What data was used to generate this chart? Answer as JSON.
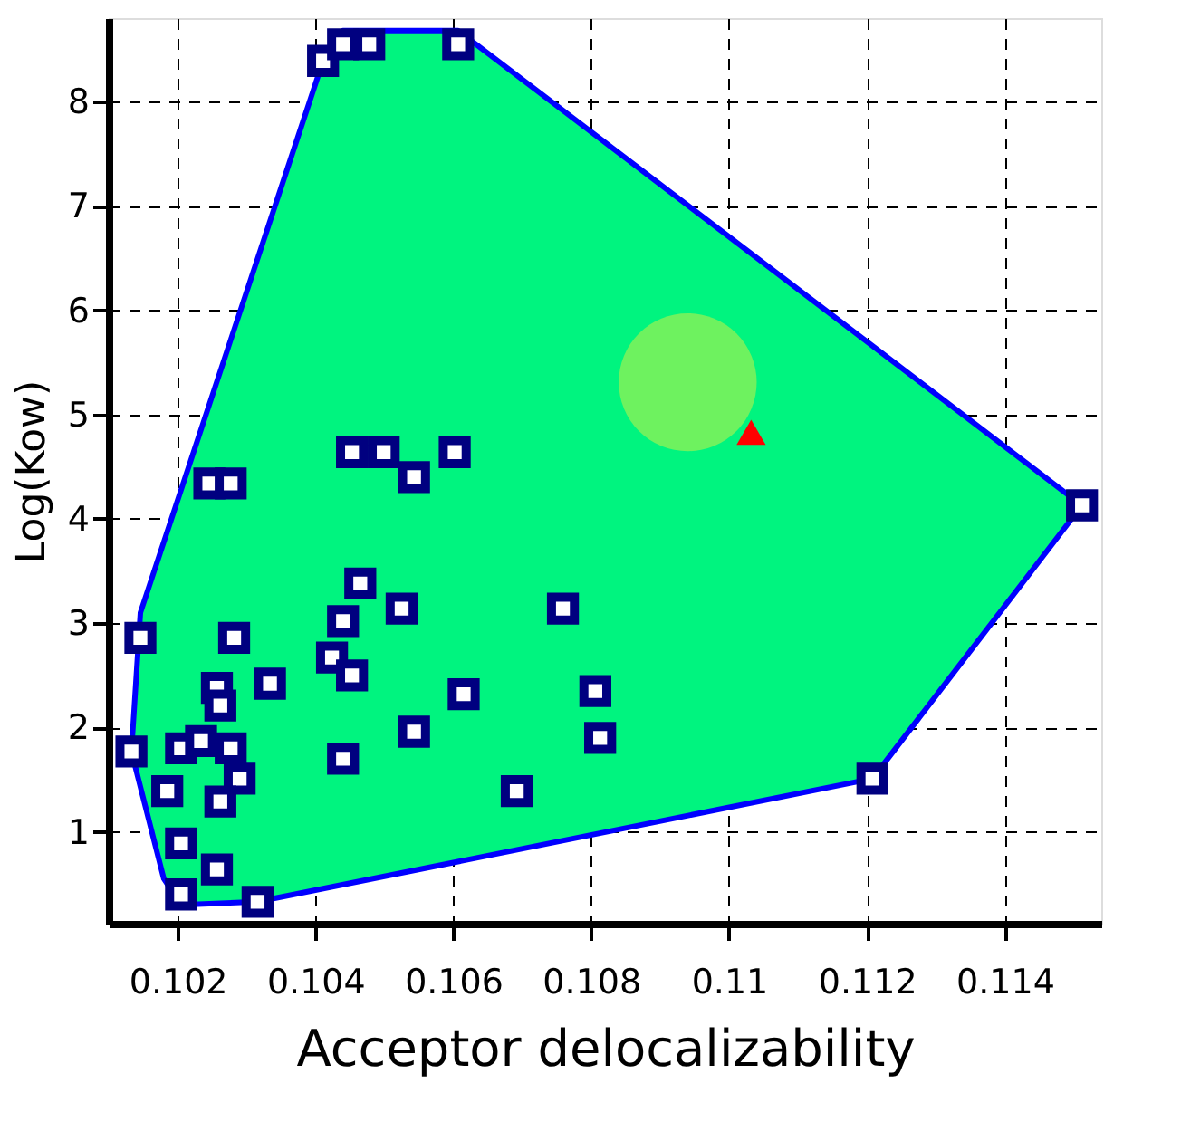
{
  "chart_data": {
    "type": "scatter",
    "xlabel": "Acceptor delocalizability",
    "ylabel": "Log(Kow)",
    "xlim": [
      0.101,
      0.1154
    ],
    "ylim": [
      0.12,
      8.8
    ],
    "xticks": [
      0.102,
      0.104,
      0.106,
      0.108,
      0.11,
      0.112,
      0.114
    ],
    "yticks": [
      1,
      2,
      3,
      4,
      5,
      6,
      7,
      8
    ],
    "grid": true,
    "series": [
      {
        "type": "area",
        "color": "#00f47f",
        "x": [
          0.10133,
          0.10146,
          0.10411,
          0.1044,
          0.10607,
          0.11512,
          0.11208,
          0.10316,
          0.10205,
          0.1018
        ],
        "values": [
          1.77,
          3.1,
          8.39,
          8.68,
          8.68,
          4.13,
          1.51,
          0.33,
          0.3,
          0.55
        ]
      },
      {
        "type": "line",
        "color": "#0000ff",
        "x": [
          0.10133,
          0.10146,
          0.10411,
          0.1044,
          0.10607,
          0.11512
        ],
        "values": [
          1.77,
          3.1,
          8.39,
          8.68,
          8.68,
          4.13
        ]
      },
      {
        "type": "line",
        "color": "#0000ff",
        "x": [
          0.10133,
          0.1018,
          0.10205,
          0.10316,
          0.11208,
          0.11512
        ],
        "values": [
          1.77,
          0.55,
          0.3,
          0.33,
          1.51,
          4.13
        ]
      },
      {
        "marker": "square",
        "color": "#000080",
        "x": [
          0.10411,
          0.1044,
          0.10478,
          0.10607,
          0.10453,
          0.10499,
          0.10543,
          0.10602,
          0.10246,
          0.10277,
          0.10465,
          0.10525,
          0.1044,
          0.10759,
          0.10146,
          0.10282,
          0.10424,
          0.10453,
          0.10334,
          0.10257,
          0.10262,
          0.10615,
          0.10806,
          0.10813,
          0.10543,
          0.10133,
          0.10205,
          0.10234,
          0.10277,
          0.1029,
          0.1044,
          0.10185,
          0.10262,
          0.10692,
          0.10205,
          0.10257,
          0.10205,
          0.10316,
          0.11208,
          0.11512
        ],
        "values": [
          8.39,
          8.55,
          8.55,
          8.55,
          4.64,
          4.64,
          4.4,
          4.64,
          4.34,
          4.34,
          3.38,
          3.14,
          3.02,
          3.14,
          2.86,
          2.86,
          2.67,
          2.5,
          2.42,
          2.38,
          2.21,
          2.32,
          2.35,
          1.9,
          1.96,
          1.77,
          1.8,
          1.87,
          1.8,
          1.51,
          1.7,
          1.39,
          1.29,
          1.39,
          0.89,
          0.64,
          0.4,
          0.33,
          1.51,
          4.13
        ]
      },
      {
        "marker": "triangle",
        "color": "#ff0000",
        "x": [
          0.11032
        ],
        "values": [
          4.83
        ]
      },
      {
        "marker": "circle",
        "color": "#6ef25f",
        "x": [
          0.1094
        ],
        "values": [
          5.31
        ]
      }
    ]
  }
}
